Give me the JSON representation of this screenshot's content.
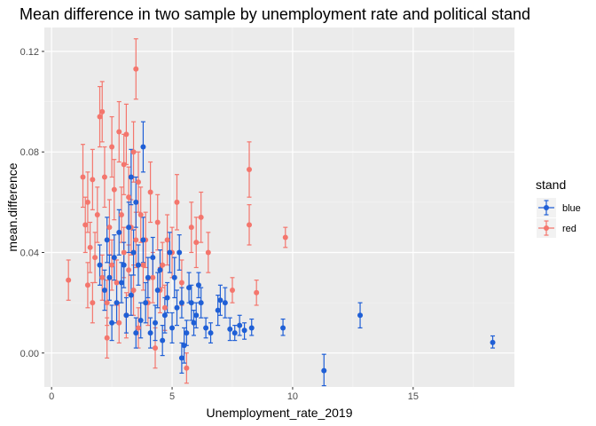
{
  "chart_data": {
    "type": "scatter",
    "title": "Mean difference in two sample by unemployment rate and political stand",
    "xlabel": "Unemployment_rate_2019",
    "ylabel": "mean.difference",
    "xlim": [
      -0.3,
      19.2
    ],
    "ylim": [
      -0.0135,
      0.1295
    ],
    "x_ticks": [
      0,
      5,
      10,
      15
    ],
    "x_tick_labels": [
      "0",
      "5",
      "10",
      "15"
    ],
    "y_ticks": [
      0.0,
      0.04,
      0.08,
      0.12
    ],
    "y_tick_labels": [
      "0.00",
      "0.04",
      "0.08",
      "0.12"
    ],
    "grid": true,
    "legend_placement": "right",
    "legend": {
      "title": "stand",
      "entries": [
        {
          "label": "blue",
          "color": "#1f5fd6"
        },
        {
          "label": "red",
          "color": "#f4766d"
        }
      ]
    },
    "series": [
      {
        "name": "blue",
        "color": "#1f5fd6",
        "points": [
          {
            "x": 18.3,
            "y": 0.0042,
            "lo": 0.002,
            "hi": 0.0068
          },
          {
            "x": 12.8,
            "y": 0.015,
            "lo": 0.01,
            "hi": 0.02
          },
          {
            "x": 11.3,
            "y": -0.007,
            "lo": -0.013,
            "hi": -0.0005
          },
          {
            "x": 9.6,
            "y": 0.01,
            "lo": 0.007,
            "hi": 0.0135
          },
          {
            "x": 8.3,
            "y": 0.01,
            "lo": 0.007,
            "hi": 0.0135
          },
          {
            "x": 8.0,
            "y": 0.009,
            "lo": 0.0055,
            "hi": 0.012
          },
          {
            "x": 7.8,
            "y": 0.011,
            "lo": 0.007,
            "hi": 0.015
          },
          {
            "x": 7.6,
            "y": 0.008,
            "lo": 0.005,
            "hi": 0.011
          },
          {
            "x": 7.4,
            "y": 0.0095,
            "lo": 0.005,
            "hi": 0.014
          },
          {
            "x": 7.2,
            "y": 0.02,
            "lo": 0.014,
            "hi": 0.026
          },
          {
            "x": 7.0,
            "y": 0.021,
            "lo": 0.015,
            "hi": 0.027
          },
          {
            "x": 6.9,
            "y": 0.017,
            "lo": 0.011,
            "hi": 0.023
          },
          {
            "x": 6.6,
            "y": 0.008,
            "lo": 0.004,
            "hi": 0.012
          },
          {
            "x": 6.4,
            "y": 0.01,
            "lo": 0.006,
            "hi": 0.014
          },
          {
            "x": 6.2,
            "y": 0.02,
            "lo": 0.014,
            "hi": 0.026
          },
          {
            "x": 6.1,
            "y": 0.027,
            "lo": 0.022,
            "hi": 0.032
          },
          {
            "x": 6.0,
            "y": 0.015,
            "lo": 0.01,
            "hi": 0.02
          },
          {
            "x": 5.9,
            "y": 0.012,
            "lo": 0.007,
            "hi": 0.017
          },
          {
            "x": 5.8,
            "y": 0.02,
            "lo": 0.013,
            "hi": 0.027
          },
          {
            "x": 5.7,
            "y": 0.026,
            "lo": 0.02,
            "hi": 0.032
          },
          {
            "x": 5.6,
            "y": 0.008,
            "lo": 0.003,
            "hi": 0.013
          },
          {
            "x": 5.5,
            "y": 0.003,
            "lo": -0.004,
            "hi": 0.01
          },
          {
            "x": 5.4,
            "y": 0.02,
            "lo": 0.014,
            "hi": 0.026
          },
          {
            "x": 5.4,
            "y": -0.002,
            "lo": -0.008,
            "hi": 0.004
          },
          {
            "x": 5.3,
            "y": 0.04,
            "lo": 0.033,
            "hi": 0.047
          },
          {
            "x": 5.2,
            "y": 0.018,
            "lo": 0.011,
            "hi": 0.025
          },
          {
            "x": 5.1,
            "y": 0.03,
            "lo": 0.022,
            "hi": 0.038
          },
          {
            "x": 5.0,
            "y": 0.01,
            "lo": 0.004,
            "hi": 0.016
          },
          {
            "x": 4.9,
            "y": 0.04,
            "lo": 0.032,
            "hi": 0.048
          },
          {
            "x": 4.8,
            "y": 0.022,
            "lo": 0.016,
            "hi": 0.028
          },
          {
            "x": 4.7,
            "y": 0.015,
            "lo": 0.008,
            "hi": 0.022
          },
          {
            "x": 4.6,
            "y": 0.005,
            "lo": -0.001,
            "hi": 0.011
          },
          {
            "x": 4.5,
            "y": 0.033,
            "lo": 0.025,
            "hi": 0.041
          },
          {
            "x": 4.4,
            "y": 0.025,
            "lo": 0.018,
            "hi": 0.032
          },
          {
            "x": 4.3,
            "y": 0.012,
            "lo": 0.005,
            "hi": 0.019
          },
          {
            "x": 4.2,
            "y": 0.038,
            "lo": 0.03,
            "hi": 0.046
          },
          {
            "x": 4.1,
            "y": 0.008,
            "lo": 0.002,
            "hi": 0.014
          },
          {
            "x": 4.0,
            "y": 0.03,
            "lo": 0.022,
            "hi": 0.038
          },
          {
            "x": 3.9,
            "y": 0.02,
            "lo": 0.012,
            "hi": 0.028
          },
          {
            "x": 3.8,
            "y": 0.082,
            "lo": 0.072,
            "hi": 0.092
          },
          {
            "x": 3.8,
            "y": 0.045,
            "lo": 0.036,
            "hi": 0.054
          },
          {
            "x": 3.7,
            "y": 0.013,
            "lo": 0.006,
            "hi": 0.02
          },
          {
            "x": 3.6,
            "y": 0.035,
            "lo": 0.027,
            "hi": 0.043
          },
          {
            "x": 3.5,
            "y": 0.06,
            "lo": 0.05,
            "hi": 0.07
          },
          {
            "x": 3.5,
            "y": 0.008,
            "lo": 0.002,
            "hi": 0.014
          },
          {
            "x": 3.4,
            "y": 0.04,
            "lo": 0.031,
            "hi": 0.049
          },
          {
            "x": 3.3,
            "y": 0.023,
            "lo": 0.015,
            "hi": 0.031
          },
          {
            "x": 3.3,
            "y": 0.07,
            "lo": 0.059,
            "hi": 0.081
          },
          {
            "x": 3.2,
            "y": 0.05,
            "lo": 0.04,
            "hi": 0.06
          },
          {
            "x": 3.1,
            "y": 0.015,
            "lo": 0.008,
            "hi": 0.022
          },
          {
            "x": 3.0,
            "y": 0.035,
            "lo": 0.026,
            "hi": 0.044
          },
          {
            "x": 2.9,
            "y": 0.028,
            "lo": 0.02,
            "hi": 0.036
          },
          {
            "x": 2.8,
            "y": 0.048,
            "lo": 0.039,
            "hi": 0.057
          },
          {
            "x": 2.7,
            "y": 0.02,
            "lo": 0.012,
            "hi": 0.028
          },
          {
            "x": 2.6,
            "y": 0.038,
            "lo": 0.029,
            "hi": 0.047
          },
          {
            "x": 2.5,
            "y": 0.012,
            "lo": 0.005,
            "hi": 0.019
          },
          {
            "x": 2.4,
            "y": 0.03,
            "lo": 0.021,
            "hi": 0.039
          },
          {
            "x": 2.3,
            "y": 0.045,
            "lo": 0.036,
            "hi": 0.054
          },
          {
            "x": 2.2,
            "y": 0.025,
            "lo": 0.017,
            "hi": 0.033
          },
          {
            "x": 2.0,
            "y": 0.035,
            "lo": 0.027,
            "hi": 0.043
          }
        ]
      },
      {
        "name": "red",
        "color": "#f4766d",
        "points": [
          {
            "x": 0.7,
            "y": 0.029,
            "lo": 0.021,
            "hi": 0.037
          },
          {
            "x": 1.3,
            "y": 0.07,
            "lo": 0.058,
            "hi": 0.083
          },
          {
            "x": 1.4,
            "y": 0.051,
            "lo": 0.04,
            "hi": 0.062
          },
          {
            "x": 1.5,
            "y": 0.06,
            "lo": 0.048,
            "hi": 0.072
          },
          {
            "x": 1.5,
            "y": 0.027,
            "lo": 0.018,
            "hi": 0.036
          },
          {
            "x": 1.6,
            "y": 0.042,
            "lo": 0.032,
            "hi": 0.052
          },
          {
            "x": 1.7,
            "y": 0.069,
            "lo": 0.057,
            "hi": 0.081
          },
          {
            "x": 1.7,
            "y": 0.02,
            "lo": 0.012,
            "hi": 0.028
          },
          {
            "x": 1.8,
            "y": 0.038,
            "lo": 0.028,
            "hi": 0.048
          },
          {
            "x": 1.9,
            "y": 0.055,
            "lo": 0.044,
            "hi": 0.066
          },
          {
            "x": 2.0,
            "y": 0.094,
            "lo": 0.082,
            "hi": 0.106
          },
          {
            "x": 2.1,
            "y": 0.096,
            "lo": 0.084,
            "hi": 0.108
          },
          {
            "x": 2.1,
            "y": 0.03,
            "lo": 0.021,
            "hi": 0.039
          },
          {
            "x": 2.2,
            "y": 0.07,
            "lo": 0.058,
            "hi": 0.082
          },
          {
            "x": 2.3,
            "y": 0.02,
            "lo": 0.011,
            "hi": 0.029
          },
          {
            "x": 2.3,
            "y": 0.006,
            "lo": -0.002,
            "hi": 0.014
          },
          {
            "x": 2.4,
            "y": 0.05,
            "lo": 0.039,
            "hi": 0.061
          },
          {
            "x": 2.5,
            "y": 0.082,
            "lo": 0.07,
            "hi": 0.094
          },
          {
            "x": 2.5,
            "y": 0.035,
            "lo": 0.025,
            "hi": 0.045
          },
          {
            "x": 2.6,
            "y": 0.065,
            "lo": 0.053,
            "hi": 0.077
          },
          {
            "x": 2.7,
            "y": 0.028,
            "lo": 0.019,
            "hi": 0.037
          },
          {
            "x": 2.8,
            "y": 0.088,
            "lo": 0.076,
            "hi": 0.1
          },
          {
            "x": 2.8,
            "y": 0.012,
            "lo": 0.004,
            "hi": 0.02
          },
          {
            "x": 2.9,
            "y": 0.055,
            "lo": 0.044,
            "hi": 0.066
          },
          {
            "x": 3.0,
            "y": 0.075,
            "lo": 0.063,
            "hi": 0.087
          },
          {
            "x": 3.0,
            "y": 0.04,
            "lo": 0.03,
            "hi": 0.05
          },
          {
            "x": 3.1,
            "y": 0.087,
            "lo": 0.075,
            "hi": 0.099
          },
          {
            "x": 3.1,
            "y": 0.015,
            "lo": 0.006,
            "hi": 0.024
          },
          {
            "x": 3.2,
            "y": 0.062,
            "lo": 0.05,
            "hi": 0.074
          },
          {
            "x": 3.2,
            "y": 0.033,
            "lo": 0.023,
            "hi": 0.043
          },
          {
            "x": 3.3,
            "y": 0.05,
            "lo": 0.039,
            "hi": 0.061
          },
          {
            "x": 3.4,
            "y": 0.08,
            "lo": 0.068,
            "hi": 0.092
          },
          {
            "x": 3.4,
            "y": 0.025,
            "lo": 0.015,
            "hi": 0.035
          },
          {
            "x": 3.5,
            "y": 0.113,
            "lo": 0.101,
            "hi": 0.125
          },
          {
            "x": 3.5,
            "y": 0.045,
            "lo": 0.034,
            "hi": 0.056
          },
          {
            "x": 3.6,
            "y": 0.068,
            "lo": 0.056,
            "hi": 0.08
          },
          {
            "x": 3.6,
            "y": 0.01,
            "lo": 0.002,
            "hi": 0.018
          },
          {
            "x": 3.7,
            "y": 0.055,
            "lo": 0.044,
            "hi": 0.066
          },
          {
            "x": 3.8,
            "y": 0.035,
            "lo": 0.025,
            "hi": 0.045
          },
          {
            "x": 3.9,
            "y": 0.045,
            "lo": 0.034,
            "hi": 0.056
          },
          {
            "x": 4.0,
            "y": 0.02,
            "lo": 0.011,
            "hi": 0.029
          },
          {
            "x": 4.1,
            "y": 0.064,
            "lo": 0.052,
            "hi": 0.076
          },
          {
            "x": 4.2,
            "y": 0.03,
            "lo": 0.02,
            "hi": 0.04
          },
          {
            "x": 4.3,
            "y": 0.002,
            "lo": -0.006,
            "hi": 0.01
          },
          {
            "x": 4.4,
            "y": 0.052,
            "lo": 0.041,
            "hi": 0.063
          },
          {
            "x": 4.5,
            "y": 0.025,
            "lo": 0.016,
            "hi": 0.034
          },
          {
            "x": 4.6,
            "y": 0.035,
            "lo": 0.026,
            "hi": 0.044
          },
          {
            "x": 4.7,
            "y": 0.018,
            "lo": 0.009,
            "hi": 0.027
          },
          {
            "x": 4.8,
            "y": 0.045,
            "lo": 0.035,
            "hi": 0.055
          },
          {
            "x": 5.0,
            "y": 0.04,
            "lo": 0.03,
            "hi": 0.05
          },
          {
            "x": 5.2,
            "y": 0.06,
            "lo": 0.049,
            "hi": 0.071
          },
          {
            "x": 5.4,
            "y": 0.028,
            "lo": 0.019,
            "hi": 0.037
          },
          {
            "x": 5.6,
            "y": -0.006,
            "lo": -0.012,
            "hi": 0.0
          },
          {
            "x": 5.8,
            "y": 0.05,
            "lo": 0.04,
            "hi": 0.06
          },
          {
            "x": 6.0,
            "y": 0.044,
            "lo": 0.034,
            "hi": 0.054
          },
          {
            "x": 6.2,
            "y": 0.054,
            "lo": 0.044,
            "hi": 0.064
          },
          {
            "x": 6.5,
            "y": 0.04,
            "lo": 0.032,
            "hi": 0.048
          },
          {
            "x": 7.5,
            "y": 0.025,
            "lo": 0.02,
            "hi": 0.03
          },
          {
            "x": 8.2,
            "y": 0.073,
            "lo": 0.062,
            "hi": 0.084
          },
          {
            "x": 8.2,
            "y": 0.051,
            "lo": 0.043,
            "hi": 0.059
          },
          {
            "x": 8.5,
            "y": 0.024,
            "lo": 0.019,
            "hi": 0.029
          },
          {
            "x": 9.7,
            "y": 0.046,
            "lo": 0.042,
            "hi": 0.05
          }
        ]
      }
    ]
  }
}
